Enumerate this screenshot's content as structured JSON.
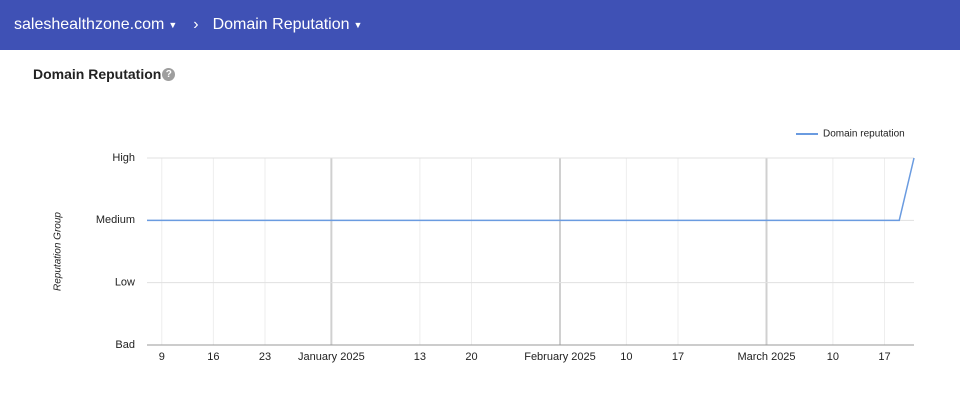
{
  "header": {
    "breadcrumbs": [
      "saleshealthzone.com",
      "Domain Reputation"
    ]
  },
  "section_title": "Domain Reputation",
  "chart_data": {
    "type": "line",
    "ylabel": "Reputation Group",
    "x": [
      "2024-12-07",
      "2025-03-19",
      "2025-03-21"
    ],
    "series": [
      {
        "name": "Domain reputation",
        "color": "#6a9be0",
        "values": [
          2,
          2,
          3
        ]
      }
    ],
    "xlim": [
      "2024-12-07",
      "2025-03-21"
    ],
    "xticks": [
      {
        "value": "2024-12-09",
        "label": "9"
      },
      {
        "value": "2024-12-16",
        "label": "16"
      },
      {
        "value": "2024-12-23",
        "label": "23"
      },
      {
        "value": "2025-01-01",
        "label": "January 2025"
      },
      {
        "value": "2025-01-13",
        "label": "13"
      },
      {
        "value": "2025-01-20",
        "label": "20"
      },
      {
        "value": "2025-02-01",
        "label": "February 2025"
      },
      {
        "value": "2025-02-10",
        "label": "10"
      },
      {
        "value": "2025-02-17",
        "label": "17"
      },
      {
        "value": "2025-03-01",
        "label": "March 2025"
      },
      {
        "value": "2025-03-10",
        "label": "10"
      },
      {
        "value": "2025-03-17",
        "label": "17"
      }
    ],
    "ylim": [
      0,
      3
    ],
    "yticks": [
      {
        "value": 0,
        "label": "Bad"
      },
      {
        "value": 1,
        "label": "Low"
      },
      {
        "value": 2,
        "label": "Medium"
      },
      {
        "value": 3,
        "label": "High"
      }
    ],
    "grid": true,
    "legend": "top-right"
  }
}
